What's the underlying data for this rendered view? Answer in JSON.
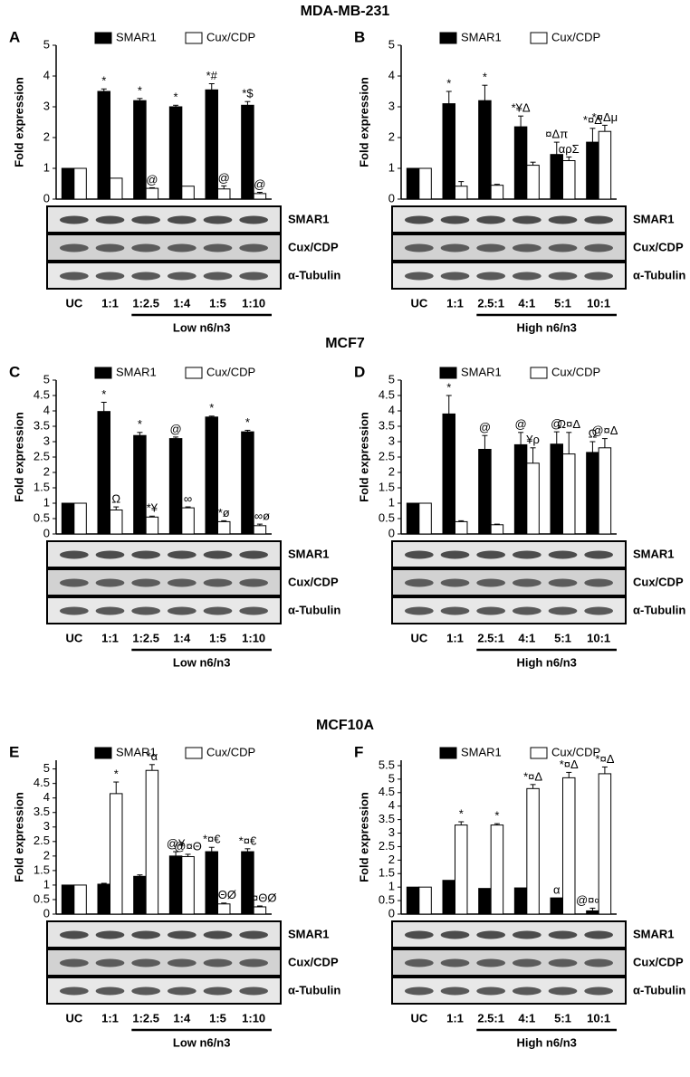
{
  "sections": [
    "MDA-MB-231",
    "MCF7",
    "MCF10A"
  ],
  "chart_data": [
    {
      "type": "bar",
      "panel": "A",
      "ylabel": "Fold expression",
      "categories": [
        "UC",
        "1:1",
        "1:2.5",
        "1:4",
        "1:5",
        "1:10"
      ],
      "ylim": [
        0,
        5
      ],
      "yticks": [
        0,
        1,
        2,
        3,
        4,
        5
      ],
      "series": [
        {
          "name": "SMAR1",
          "color": "#000000",
          "values": [
            1,
            3.5,
            3.2,
            3.0,
            3.55,
            3.05
          ],
          "errors": [
            0,
            0.08,
            0.07,
            0.05,
            0.2,
            0.12
          ],
          "annotations": [
            null,
            "*",
            "*",
            "*",
            "*#",
            "*$"
          ]
        },
        {
          "name": "Cux/CDP",
          "color": "#ffffff",
          "values": [
            1,
            0.68,
            0.35,
            0.42,
            0.33,
            0.18
          ],
          "errors": [
            0,
            0,
            0.02,
            0,
            0.1,
            0.04
          ],
          "annotations": [
            null,
            null,
            "@",
            null,
            "@",
            "@"
          ]
        }
      ],
      "blot_labels": [
        "SMAR1",
        "Cux/CDP",
        "α-Tubulin"
      ],
      "group_label": "Low n6/n3"
    },
    {
      "type": "bar",
      "panel": "B",
      "ylabel": "Fold expression",
      "categories": [
        "UC",
        "1:1",
        "2.5:1",
        "4:1",
        "5:1",
        "10:1"
      ],
      "ylim": [
        0,
        5
      ],
      "yticks": [
        0,
        1,
        2,
        3,
        4,
        5
      ],
      "series": [
        {
          "name": "SMAR1",
          "color": "#000000",
          "values": [
            1,
            3.1,
            3.2,
            2.35,
            1.45,
            1.85
          ],
          "errors": [
            0,
            0.4,
            0.5,
            0.35,
            0.4,
            0.45
          ],
          "annotations": [
            null,
            "*",
            "*",
            "*¥Δ",
            "¤Δπ",
            "*¤Δ"
          ]
        },
        {
          "name": "Cux/CDP",
          "color": "#ffffff",
          "values": [
            1,
            0.42,
            0.45,
            1.1,
            1.25,
            2.2
          ],
          "errors": [
            0,
            0.15,
            0.03,
            0.1,
            0.12,
            0.2
          ],
          "annotations": [
            null,
            null,
            null,
            null,
            "αρΣ",
            "*¤Δμ"
          ]
        }
      ],
      "blot_labels": [
        "SMAR1",
        "Cux/CDP",
        "α-Tubulin"
      ],
      "group_label": "High n6/n3"
    },
    {
      "type": "bar",
      "panel": "C",
      "ylabel": "Fold expression",
      "categories": [
        "UC",
        "1:1",
        "1:2.5",
        "1:4",
        "1:5",
        "1:10"
      ],
      "ylim": [
        0,
        5
      ],
      "yticks": [
        0,
        0.5,
        1,
        1.5,
        2,
        2.5,
        3,
        3.5,
        4,
        4.5,
        5
      ],
      "series": [
        {
          "name": "SMAR1",
          "color": "#000000",
          "values": [
            1,
            3.98,
            3.2,
            3.1,
            3.8,
            3.32
          ],
          "errors": [
            0,
            0.3,
            0.1,
            0.05,
            0.03,
            0.05
          ],
          "annotations": [
            null,
            "*",
            "*",
            "@",
            "*",
            "*"
          ]
        },
        {
          "name": "Cux/CDP",
          "color": "#ffffff",
          "values": [
            1,
            0.78,
            0.55,
            0.85,
            0.4,
            0.27
          ],
          "errors": [
            0,
            0.1,
            0.03,
            0.03,
            0.03,
            0.05
          ],
          "annotations": [
            null,
            "Ω",
            "*¥",
            "∞",
            "*ø",
            "*∞ø"
          ]
        }
      ],
      "blot_labels": [
        "SMAR1",
        "Cux/CDP",
        "α-Tubulin"
      ],
      "group_label": "Low n6/n3"
    },
    {
      "type": "bar",
      "panel": "D",
      "ylabel": "Fold expression",
      "categories": [
        "UC",
        "1:1",
        "2.5:1",
        "4:1",
        "5:1",
        "10:1"
      ],
      "ylim": [
        0,
        5
      ],
      "yticks": [
        0,
        0.5,
        1,
        1.5,
        2,
        2.5,
        3,
        3.5,
        4,
        4.5,
        5
      ],
      "series": [
        {
          "name": "SMAR1",
          "color": "#000000",
          "values": [
            1,
            3.9,
            2.75,
            2.9,
            2.92,
            2.65
          ],
          "errors": [
            0,
            0.6,
            0.45,
            0.4,
            0.4,
            0.35
          ],
          "annotations": [
            null,
            "*",
            "@",
            "@",
            "@",
            "Ω"
          ]
        },
        {
          "name": "Cux/CDP",
          "color": "#ffffff",
          "values": [
            1,
            0.4,
            0.3,
            2.3,
            2.6,
            2.8
          ],
          "errors": [
            0,
            0.03,
            0.02,
            0.5,
            0.7,
            0.3
          ],
          "annotations": [
            null,
            null,
            null,
            "¥ρ",
            "Ω¤Δ",
            "@¤Δ"
          ]
        }
      ],
      "blot_labels": [
        "SMAR1",
        "Cux/CDP",
        "α-Tubulin"
      ],
      "group_label": "High n6/n3"
    },
    {
      "type": "bar",
      "panel": "E",
      "ylabel": "Fold expression",
      "categories": [
        "UC",
        "1:1",
        "1:2.5",
        "1:4",
        "1:5",
        "1:10"
      ],
      "ylim": [
        0,
        5.3
      ],
      "yticks": [
        0,
        0.5,
        1,
        1.5,
        2,
        2.5,
        3,
        3.5,
        4,
        4.5,
        5
      ],
      "series": [
        {
          "name": "SMAR1",
          "color": "#000000",
          "values": [
            1,
            1.03,
            1.3,
            2.0,
            2.15,
            2.15
          ],
          "errors": [
            0,
            0.03,
            0.05,
            0.15,
            0.15,
            0.1
          ],
          "annotations": [
            null,
            null,
            null,
            "@¥",
            "*¤€",
            "*¤€"
          ]
        },
        {
          "name": "Cux/CDP",
          "color": "#ffffff",
          "values": [
            1,
            4.15,
            4.95,
            1.98,
            0.35,
            0.25
          ],
          "errors": [
            0,
            0.4,
            0.2,
            0.08,
            0.03,
            0.03
          ],
          "annotations": [
            null,
            "*",
            "*α",
            "@¤Θ",
            "¤ΘØ",
            "Ω¤ΘØ"
          ]
        }
      ],
      "blot_labels": [
        "SMAR1",
        "Cux/CDP",
        "α-Tubulin"
      ],
      "group_label": "Low n6/n3"
    },
    {
      "type": "bar",
      "panel": "F",
      "ylabel": "Fold expression",
      "categories": [
        "UC",
        "1:1",
        "2.5:1",
        "4:1",
        "5:1",
        "10:1"
      ],
      "ylim": [
        0,
        5.7
      ],
      "yticks": [
        0,
        0.5,
        1,
        1.5,
        2,
        2.5,
        3,
        3.5,
        4,
        4.5,
        5,
        5.5
      ],
      "series": [
        {
          "name": "SMAR1",
          "color": "#000000",
          "values": [
            1,
            1.25,
            0.95,
            0.97,
            0.6,
            0.12
          ],
          "errors": [
            0,
            0,
            0,
            0,
            0,
            0.1
          ],
          "annotations": [
            null,
            null,
            null,
            null,
            "α",
            "@¤∞‡"
          ]
        },
        {
          "name": "Cux/CDP",
          "color": "#ffffff",
          "values": [
            1,
            3.3,
            3.3,
            4.65,
            5.05,
            5.2
          ],
          "errors": [
            0,
            0.12,
            0.05,
            0.15,
            0.2,
            0.25
          ],
          "annotations": [
            null,
            "*",
            "*",
            "*¤Δ",
            "*¤Δ",
            "*¤Δ"
          ]
        }
      ],
      "blot_labels": [
        "SMAR1",
        "Cux/CDP",
        "α-Tubulin"
      ],
      "group_label": "High n6/n3"
    }
  ]
}
